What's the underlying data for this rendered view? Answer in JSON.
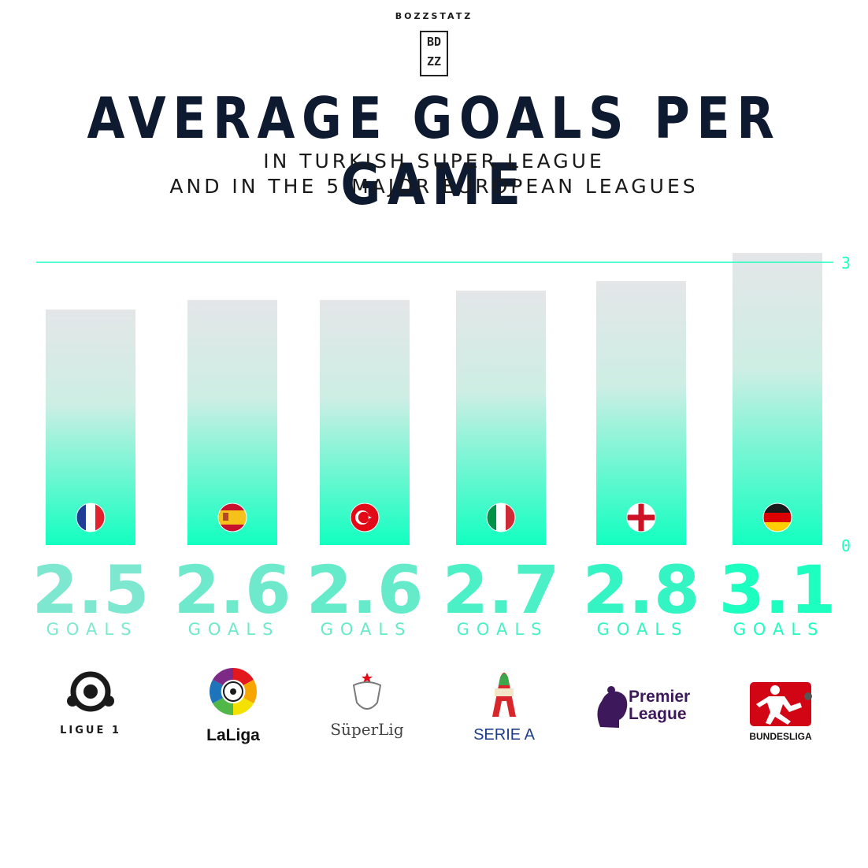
{
  "brand": "BOZZSTATZ",
  "logo_text": "BOZZ",
  "title": "AVERAGE GOALS PER GAME",
  "subtitle_line1": "IN TURKISH SUPER LEAGUE",
  "subtitle_line2": "AND IN THE 5 MAJOR EUROPEAN LEAGUES",
  "colors": {
    "accent": "#1dffc0",
    "title": "#0e1a2f",
    "bar_top": "#e4e6e8",
    "bar_bottom": "#12ffc0"
  },
  "chart_data": {
    "type": "bar",
    "categories": [
      "LIGUE 1",
      "LaLiga",
      "SüperLig",
      "SERIE A",
      "Premier League",
      "BUNDESLIGA"
    ],
    "values": [
      2.5,
      2.6,
      2.6,
      2.7,
      2.8,
      3.1
    ],
    "value_labels": [
      "2.5",
      "2.6",
      "2.6",
      "2.7",
      "2.8",
      "3.1"
    ],
    "unit_label": "GOALS",
    "flags": [
      "france-flag",
      "spain-flag",
      "turkey-flag",
      "italy-flag",
      "england-flag",
      "germany-flag"
    ],
    "axis_ticks": [
      "0",
      "3"
    ],
    "ylim": [
      0,
      3
    ],
    "reference_line": 3,
    "grid": false
  },
  "league_logos": {
    "ligue1": "LIGUE 1",
    "laliga": "LaLiga",
    "superlig": "SüperLig",
    "seriea": "SERIE A",
    "premier_line1": "Premier",
    "premier_line2": "League",
    "bundesliga": "BUNDESLIGA"
  }
}
